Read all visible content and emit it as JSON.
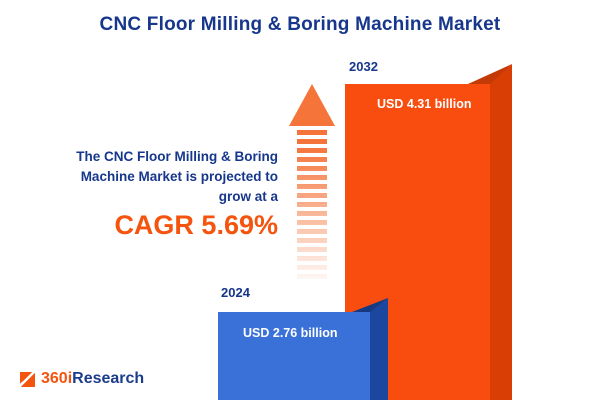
{
  "title": "CNC Floor Milling & Boring Machine Market",
  "intro": {
    "lines": [
      "The CNC Floor Milling & Boring",
      "Machine Market is projected to",
      "grow at a"
    ],
    "cagr": "CAGR 5.69%"
  },
  "bars": [
    {
      "year": "2024",
      "value_label": "USD 2.76 billion",
      "color": "#3a71d9"
    },
    {
      "year": "2032",
      "value_label": "USD 4.31 billion",
      "color": "#f94d10"
    }
  ],
  "logo": {
    "prefix": "360i",
    "suffix": "Research"
  },
  "colors": {
    "navy_text": "#17378c",
    "orange_accent": "#f4540e",
    "arrow_orange": "#f4743a",
    "bar_blue": "#3a71d9",
    "bar_orange": "#f94d10",
    "background": "#ffffff"
  },
  "chart_data": {
    "type": "bar",
    "categories": [
      "2024",
      "2032"
    ],
    "values": [
      2.76,
      4.31
    ],
    "unit": "USD billion",
    "title": "CNC Floor Milling & Boring Machine Market",
    "annotations": [
      "CAGR 5.69%"
    ],
    "bar_colors": [
      "#3a71d9",
      "#f94d10"
    ],
    "legend": false,
    "grid": false
  }
}
